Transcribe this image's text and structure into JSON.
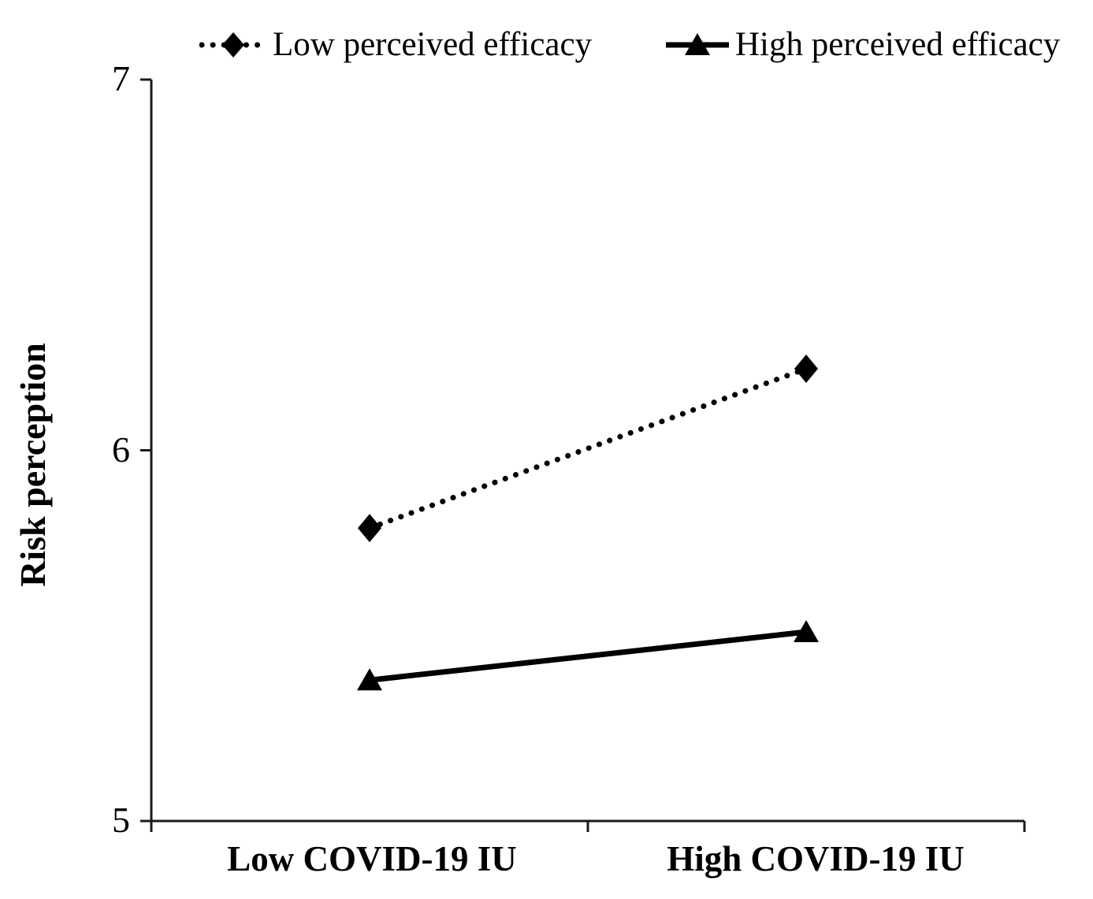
{
  "chart_data": {
    "type": "line",
    "title": "",
    "xlabel": "",
    "ylabel": "Risk perception",
    "categories": [
      "Low COVID-19 IU",
      "High COVID-19 IU"
    ],
    "series": [
      {
        "name": "Low perceived efficacy",
        "values": [
          5.79,
          6.22
        ],
        "line_style": "dotted",
        "marker": "diamond",
        "color": "#000000"
      },
      {
        "name": "High perceived efficacy",
        "values": [
          5.38,
          5.51
        ],
        "line_style": "solid",
        "marker": "triangle",
        "color": "#000000"
      }
    ],
    "ylim": [
      5,
      7
    ],
    "yticks": [
      5,
      6,
      7
    ],
    "ytick_labels": [
      "5",
      "6",
      "7"
    ],
    "grid": false,
    "legend_position": "top",
    "axis_color": "#1a1a1a",
    "background": "#ffffff"
  }
}
